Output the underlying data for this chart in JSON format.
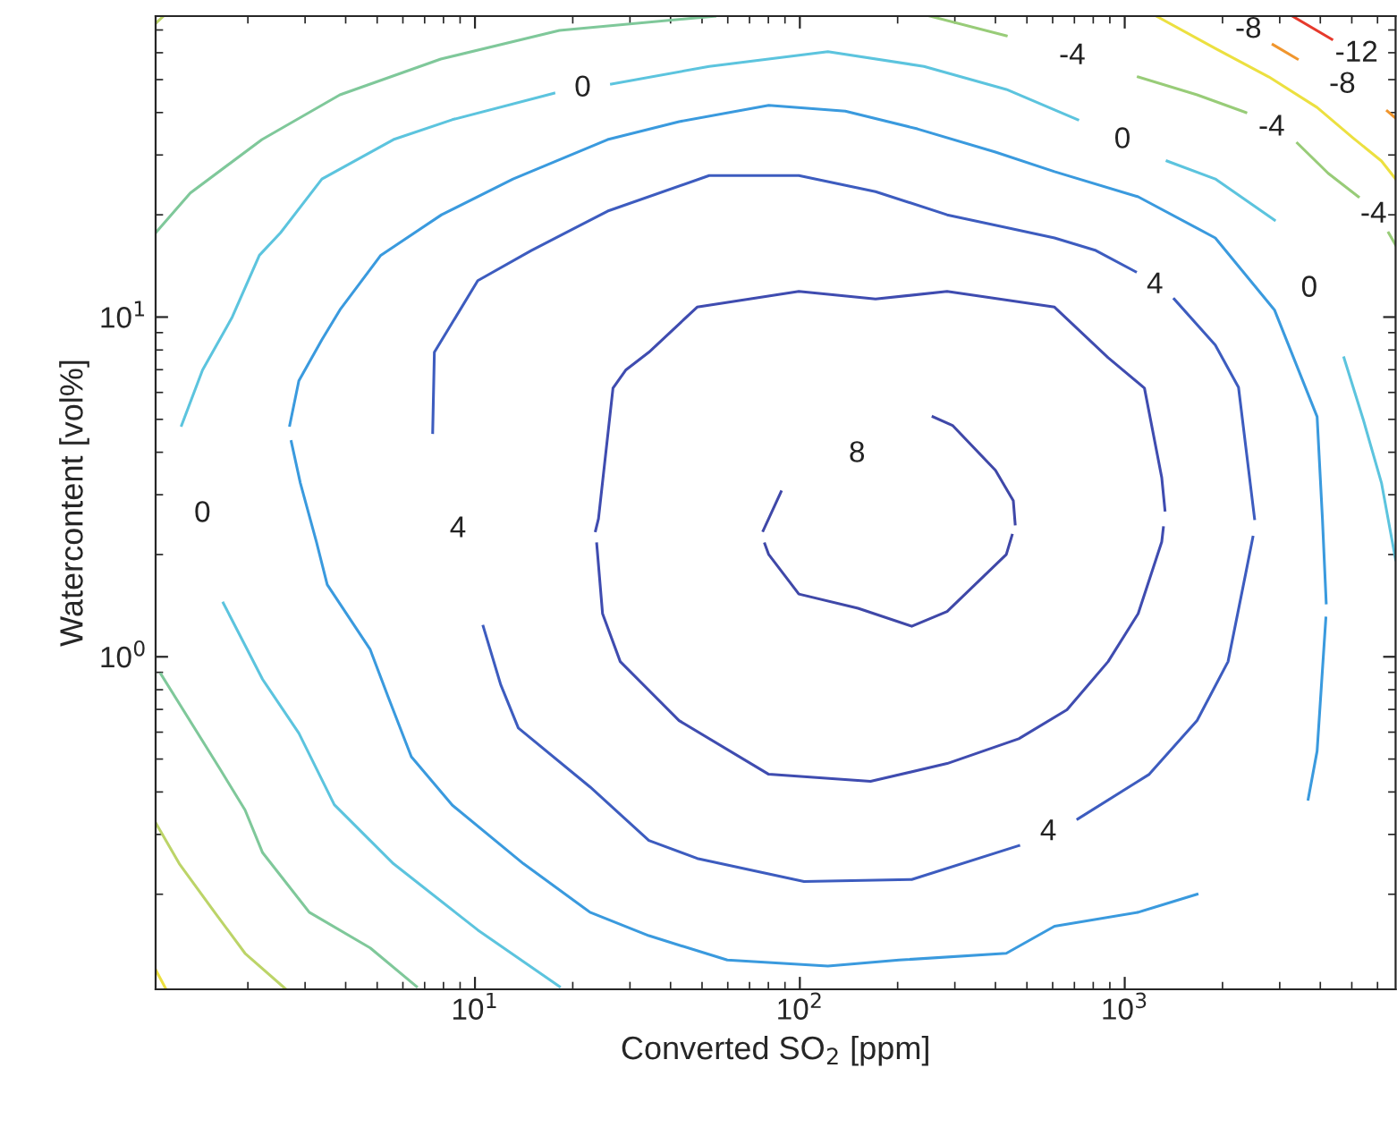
{
  "chart_data": {
    "type": "line",
    "xlabel": "Converted SO$_{2}$ [ppm]",
    "ylabel": "Watercontent [vol%]",
    "log": "xy",
    "grid": false,
    "marker": "none",
    "line_style": "solid",
    "xlim": [
      1.04,
      6820
    ],
    "ylim": [
      0.105,
      76.9
    ],
    "xticks": [
      {
        "value": 10,
        "label": "10$^{1}$"
      },
      {
        "value": 100,
        "label": "10$^{2}$"
      },
      {
        "value": 1000,
        "label": "10$^{3}$"
      }
    ],
    "yticks": [
      {
        "value": 1,
        "label": "10$^{0}$"
      },
      {
        "value": 10,
        "label": "10$^{1}$"
      }
    ],
    "series": [
      {
        "color": "#3f48a8",
        "x": [
          77.1,
          87.5,
          null,
          257,
          295,
          400,
          454,
          460
        ],
        "values": [
          2.35,
          3.06,
          null,
          5.09,
          4.8,
          3.54,
          2.88,
          2.46
        ]
      },
      {
        "color": "#3f48a8",
        "x": [
          78.0,
          80.2,
          99.3,
          151,
          221,
          284,
          432,
          450
        ],
        "values": [
          2.15,
          2.0,
          1.53,
          1.39,
          1.23,
          1.36,
          2.0,
          2.28
        ]
      },
      {
        "color": "#3f4cb0",
        "x": [
          23.5,
          24.0,
          26.6,
          29.1,
          34.3,
          48.3,
          99.3,
          171,
          284,
          608,
          889,
          1150,
          1300,
          1330
        ],
        "values": [
          2.35,
          2.55,
          6.18,
          6.98,
          7.88,
          10.7,
          11.9,
          11.3,
          11.9,
          10.7,
          7.59,
          6.18,
          3.37,
          2.7
        ]
      },
      {
        "color": "#3f4cb0",
        "x": [
          23.7,
          24.7,
          28.0,
          42.5,
          80.2,
          165,
          284,
          472,
          664,
          889,
          1100,
          1300,
          1315
        ],
        "values": [
          2.15,
          1.34,
          0.968,
          0.649,
          0.451,
          0.43,
          0.485,
          0.574,
          0.698,
          0.968,
          1.34,
          2.18,
          2.4
        ]
      },
      {
        "color": "#3d5cbf",
        "x": [
          7.41,
          7.5,
          10.2,
          14.9,
          25.6,
          52.6,
          99.3,
          171,
          284,
          608,
          815,
          1080,
          null,
          1420,
          1900,
          2240,
          2510
        ],
        "values": [
          4.57,
          7.88,
          12.8,
          15.7,
          20.5,
          26.1,
          26.1,
          23.4,
          20.0,
          17.1,
          15.7,
          13.6,
          null,
          11.3,
          8.27,
          6.21,
          2.55
        ]
      },
      {
        "color": "#3d5cbf",
        "x": [
          10.6,
          12.0,
          13.6,
          22.6,
          34.3,
          48.3,
          103,
          221,
          472,
          null,
          717,
          1190,
          1670,
          2080,
          2360,
          2480
        ],
        "values": [
          1.23,
          0.828,
          0.617,
          0.414,
          0.288,
          0.255,
          0.218,
          0.221,
          0.278,
          null,
          0.333,
          0.451,
          0.649,
          0.968,
          1.77,
          2.25
        ]
      },
      {
        "color": "#3a9ade",
        "x": [
          2.72,
          2.9,
          3.25,
          3.51,
          4.76,
          5.41,
          6.37,
          8.51,
          14.1,
          22.6,
          34.3,
          59.8,
          122,
          202,
          432,
          608,
          1100,
          1670
        ],
        "values": [
          4.3,
          3.25,
          2.18,
          1.63,
          1.05,
          0.76,
          0.508,
          0.366,
          0.246,
          0.177,
          0.151,
          0.128,
          0.123,
          0.128,
          0.134,
          0.161,
          0.177,
          0.2
        ]
      },
      {
        "color": "#3a9ade",
        "x": [
          2.69,
          2.87,
          3.38,
          3.84,
          5.13,
          7.89,
          13.1,
          25.6,
          42.5,
          80.2,
          138,
          230,
          400,
          608,
          1100,
          1900,
          2890,
          3910,
          4060,
          4170
        ],
        "values": [
          4.8,
          6.49,
          8.58,
          10.5,
          15.2,
          20.0,
          25.5,
          33.3,
          37.6,
          42.0,
          40.4,
          35.8,
          30.6,
          26.8,
          22.6,
          17.1,
          10.5,
          5.09,
          2.55,
          1.44
        ]
      },
      {
        "color": "#3a9ade",
        "x": [
          3670,
          3910,
          4160
        ],
        "values": [
          0.381,
          0.528,
          1.3
        ]
      },
      {
        "color": "#5cc4de",
        "x": [
          1.25,
          1.45,
          1.79,
          2.17,
          2.52,
          3.38,
          5.61,
          8.51,
          17.5,
          null,
          26.3,
          52.6,
          122,
          241,
          432,
          717,
          null,
          1350,
          1900,
          2890,
          null,
          4730,
          5430,
          6170,
          6820
        ],
        "values": [
          4.8,
          6.98,
          10.0,
          15.2,
          17.7,
          25.5,
          33.3,
          38.1,
          45.6,
          null,
          48.5,
          54.7,
          60.4,
          54.7,
          46.8,
          38.1,
          null,
          28.8,
          25.5,
          19.3,
          null,
          7.59,
          4.97,
          3.25,
          1.93
        ]
      },
      {
        "color": "#5cc4de",
        "x": [
          1.68,
          2.22,
          2.87,
          3.69,
          5.61,
          10.2,
          18.2
        ],
        "values": [
          1.44,
          0.858,
          0.596,
          0.367,
          0.246,
          0.157,
          0.107
        ]
      },
      {
        "color": "#7fc89a",
        "x": [
          1.04,
          1.33,
          2.21,
          3.84,
          7.85,
          18.2,
          54.8
        ],
        "values": [
          17.7,
          23.2,
          33.3,
          45.1,
          57.5,
          69.8,
          76.9
        ]
      },
      {
        "color": "#7fc89a",
        "x": [
          1.08,
          1.64,
          1.96,
          2.22,
          3.09,
          4.76,
          6.61
        ],
        "values": [
          0.889,
          0.468,
          0.354,
          0.265,
          0.177,
          0.139,
          0.107
        ]
      },
      {
        "color": "#98cc78",
        "x": [
          251,
          432,
          null,
          1100,
          1670,
          2360,
          null,
          3400,
          4230,
          5240,
          null,
          6490,
          6820
        ],
        "values": [
          76.9,
          67.3,
          null,
          50.9,
          45.1,
          40.0,
          null,
          32.5,
          26.5,
          22.6,
          null,
          17.7,
          16.3
        ]
      },
      {
        "color": "#bcd468",
        "x": [
          1.04,
          1.23,
          1.58,
          1.96,
          2.62
        ],
        "values": [
          0.325,
          0.246,
          0.177,
          0.134,
          0.105
        ]
      },
      {
        "color": "#bcd468",
        "x": [
          1.04,
          1.1
        ],
        "values": [
          73.2,
          76.9
        ]
      },
      {
        "color": "#ece040",
        "x": [
          1.04,
          1.12
        ],
        "values": [
          0.12,
          0.105
        ]
      },
      {
        "color": "#ece040",
        "x": [
          1250,
          1900,
          2780,
          3910,
          5040,
          6170,
          6820
        ],
        "values": [
          76.9,
          61.8,
          50.9,
          41.4,
          33.7,
          28.8,
          25.5
        ]
      },
      {
        "color": "#f0962e",
        "x": [
          2860,
          3400,
          null,
          6430,
          6820
        ],
        "values": [
          63.4,
          57.5,
          null,
          40.4,
          38.5
        ]
      },
      {
        "color": "#e63a2c",
        "x": [
          3280,
          4340
        ],
        "values": [
          76.9,
          65.7
        ]
      }
    ],
    "annotations": [
      {
        "text": "0",
        "x": 17.5,
        "y": 45.6
      },
      {
        "text": "0",
        "x": 717,
        "y": 38.1
      },
      {
        "text": "0",
        "x": 2890,
        "y": 19.3
      },
      {
        "text": "0",
        "x": 1.25,
        "y": 4.8
      },
      {
        "text": "4",
        "x": 7.41,
        "y": 4.57
      },
      {
        "text": "4",
        "x": 1080,
        "y": 13.6
      },
      {
        "text": "4",
        "x": 472,
        "y": 0.278
      },
      {
        "text": "8",
        "x": 87.5,
        "y": 3.06
      },
      {
        "text": "-4",
        "x": 432,
        "y": 67.3
      },
      {
        "text": "-4",
        "x": 2360,
        "y": 40.0
      },
      {
        "text": "-4",
        "x": 5240,
        "y": 22.6
      },
      {
        "text": "-8",
        "x": 2860,
        "y": 63.4
      },
      {
        "text": "-8",
        "x": 3400,
        "y": 57.5
      },
      {
        "text": "-12",
        "x": 4340,
        "y": 65.7
      }
    ]
  }
}
